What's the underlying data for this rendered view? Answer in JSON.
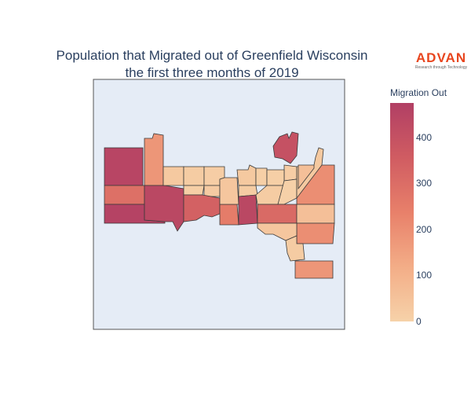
{
  "title_line1": "Population that Migrated out of Greenfield Wisconsin",
  "title_line2": "the first three months of 2019",
  "logo": {
    "brand": "ADVAN",
    "tagline": "Research through Technology",
    "color": "#e8451e"
  },
  "colorbar": {
    "title": "Migration Out",
    "min": 0,
    "max": 475,
    "ticks": [
      "0",
      "100",
      "200",
      "300",
      "400"
    ],
    "tick_values": [
      0,
      100,
      200,
      300,
      400
    ],
    "colors": [
      "#f6d2a9",
      "#f3ad87",
      "#e8806a",
      "#d05c62",
      "#b13f64"
    ]
  },
  "map_background": "#e5ecf6",
  "regions": [
    {
      "id": "nw-tall",
      "value": 450
    },
    {
      "id": "nw-strip",
      "value": 180
    },
    {
      "id": "w-mid",
      "value": 290
    },
    {
      "id": "w-bottom",
      "value": 460
    },
    {
      "id": "west-center",
      "value": 440
    },
    {
      "id": "top-1",
      "value": 30
    },
    {
      "id": "top-2",
      "value": 20
    },
    {
      "id": "top-3",
      "value": 15
    },
    {
      "id": "mid-1",
      "value": 10
    },
    {
      "id": "mid-2",
      "value": 25
    },
    {
      "id": "center-red",
      "value": 340
    },
    {
      "id": "center-small",
      "value": 250
    },
    {
      "id": "c-1",
      "value": 40
    },
    {
      "id": "c-2",
      "value": 30
    },
    {
      "id": "c-3",
      "value": 20
    },
    {
      "id": "c-4",
      "value": 10
    },
    {
      "id": "center-dark",
      "value": 440
    },
    {
      "id": "ne-island",
      "value": 400
    },
    {
      "id": "east-1",
      "value": 15
    },
    {
      "id": "east-2",
      "value": 10
    },
    {
      "id": "east-3",
      "value": 20
    },
    {
      "id": "east-4",
      "value": 5
    },
    {
      "id": "east-5",
      "value": 30
    },
    {
      "id": "east-6",
      "value": 60
    },
    {
      "id": "east-orange-1",
      "value": 200
    },
    {
      "id": "east-red",
      "value": 310
    },
    {
      "id": "east-light",
      "value": 60
    },
    {
      "id": "east-orange-2",
      "value": 200
    },
    {
      "id": "south-1",
      "value": 40
    },
    {
      "id": "south-2",
      "value": 20
    },
    {
      "id": "south-bottom",
      "value": 180
    }
  ]
}
